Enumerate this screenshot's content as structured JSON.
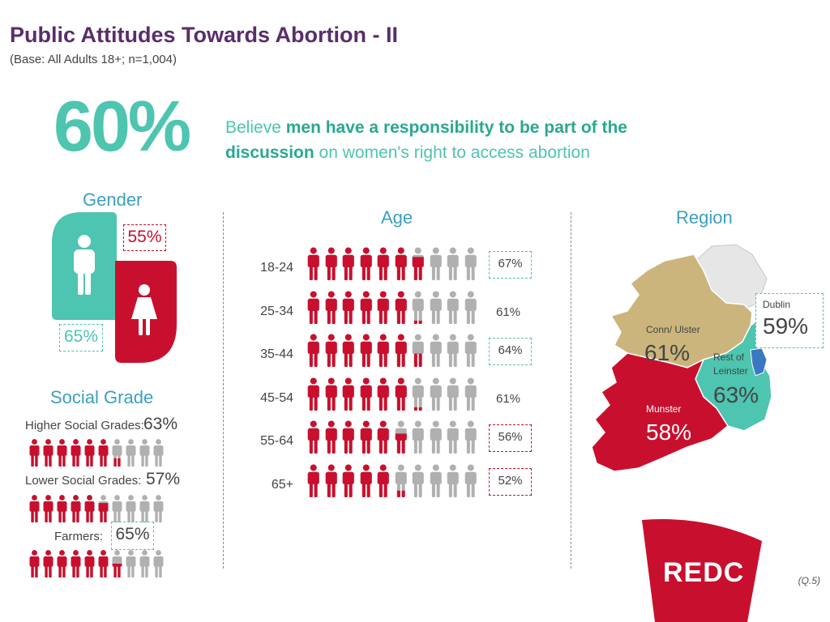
{
  "title": "Public Attitudes Towards Abortion - II",
  "subtitle": "(Base: All Adults 18+; n=1,004)",
  "headline": {
    "pct": "60%",
    "pre": "Believe ",
    "bold": "men have a responsibility to be part of the discussion",
    "post": " on women's right to access abortion"
  },
  "gender": {
    "title": "Gender",
    "female_pct": "55%",
    "male_pct": "65%"
  },
  "age": {
    "title": "Age"
  },
  "region": {
    "title": "Region",
    "labels": {
      "dublin": "Dublin",
      "conn_ulster": "Conn/ Ulster",
      "rest_of_leinster_1": "Rest of",
      "rest_of_leinster_2": "Leinster",
      "munster": "Munster"
    },
    "values": {
      "dublin": "59%",
      "conn_ulster": "61%",
      "rest_of_leinster": "63%",
      "munster": "58%"
    }
  },
  "social_grade": {
    "title": "Social Grade",
    "rows": [
      {
        "label": "Higher Social Grades:",
        "pct": "63%"
      },
      {
        "label": "Lower Social Grades:",
        "pct": "57%"
      },
      {
        "label": "Farmers:",
        "pct": "65%"
      }
    ]
  },
  "brand": "REDC",
  "footnote": "(Q.5)",
  "colors": {
    "teal": "#4dc5b0",
    "red": "#c8102e",
    "grey": "#b0b0b0",
    "purple": "#5a2d6b",
    "blue": "#3d9fc0",
    "connacht_ulster": "#cbb57d",
    "munster": "#c8102e",
    "leinster": "#4dc5b0",
    "dublin": "#3b78c2"
  },
  "chart_data": [
    {
      "type": "bar",
      "title": "Age",
      "categories": [
        "18-24",
        "25-34",
        "35-44",
        "45-54",
        "55-64",
        "65+"
      ],
      "values": [
        67,
        61,
        64,
        61,
        56,
        52
      ],
      "labels": [
        "67%",
        "61%",
        "64%",
        "61%",
        "56%",
        "52%"
      ],
      "units": "%",
      "icons_per_row": 10,
      "box_highlight": [
        "green",
        "none",
        "green",
        "none",
        "red",
        "red"
      ]
    },
    {
      "type": "bar",
      "title": "Social Grade",
      "categories": [
        "Higher Social Grades",
        "Lower Social Grades",
        "Farmers"
      ],
      "values": [
        63,
        57,
        65
      ],
      "icons_per_row": 10
    },
    {
      "type": "bar",
      "title": "Gender",
      "categories": [
        "Male",
        "Female"
      ],
      "values": [
        65,
        55
      ]
    },
    {
      "type": "table",
      "title": "Region",
      "categories": [
        "Dublin",
        "Conn/ Ulster",
        "Rest of Leinster",
        "Munster"
      ],
      "values": [
        59,
        61,
        63,
        58
      ]
    }
  ]
}
